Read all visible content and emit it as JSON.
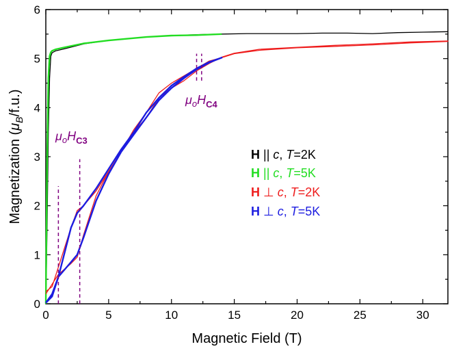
{
  "chart_data": {
    "type": "line",
    "xlabel": "Magnetic Field (T)",
    "ylabel": "Magnetization (μB/f.u.)",
    "ylabel_parts": {
      "pre": "Magnetization (",
      "mu": "μ",
      "sub": "B",
      "post": "/f.u.)"
    },
    "xlim": [
      0,
      32
    ],
    "ylim": [
      0,
      6
    ],
    "xticks": [
      0,
      5,
      10,
      15,
      20,
      25,
      30
    ],
    "yticks": [
      0,
      1,
      2,
      3,
      4,
      5,
      6
    ],
    "grid": false,
    "legend_position": "right-center",
    "series": [
      {
        "legend": {
          "b": "H",
          "sym": "||",
          "c": "c",
          "t": "T",
          "val": "=2K"
        },
        "color": "#000000",
        "loop": false,
        "x": [
          0,
          0.1,
          0.2,
          0.3,
          0.4,
          0.5,
          0.8,
          1.5,
          3,
          5,
          8,
          10,
          12,
          14,
          16,
          18,
          20,
          22,
          24,
          26,
          28,
          30,
          32
        ],
        "values": [
          0,
          1.5,
          3.5,
          4.6,
          5.05,
          5.12,
          5.16,
          5.2,
          5.3,
          5.37,
          5.44,
          5.47,
          5.49,
          5.5,
          5.51,
          5.51,
          5.51,
          5.52,
          5.52,
          5.51,
          5.53,
          5.54,
          5.55
        ]
      },
      {
        "legend": {
          "b": "H",
          "sym": "||",
          "c": "c",
          "t": "T",
          "val": "=5K"
        },
        "color": "#22dd22",
        "loop": false,
        "x": [
          0,
          0.1,
          0.2,
          0.3,
          0.4,
          0.5,
          0.8,
          1.5,
          3,
          5,
          8,
          10,
          12,
          14
        ],
        "values": [
          0,
          2.8,
          4.6,
          5.05,
          5.13,
          5.16,
          5.19,
          5.23,
          5.31,
          5.37,
          5.44,
          5.47,
          5.48,
          5.5
        ]
      },
      {
        "legend": {
          "b": "H",
          "sym": "⊥",
          "c": "c",
          "t": "T",
          "val": "=2K"
        },
        "color": "#ee1c1c",
        "loop": true,
        "x": [
          0,
          1,
          2,
          2.5,
          3,
          4,
          5,
          6,
          7,
          8,
          9,
          10,
          11,
          12,
          13,
          14,
          15,
          17,
          20,
          23,
          26,
          29,
          32
        ],
        "values": [
          0.2,
          0.6,
          0.82,
          0.95,
          1.4,
          2.2,
          2.7,
          3.1,
          3.55,
          3.9,
          4.3,
          4.5,
          4.65,
          4.8,
          4.95,
          5.02,
          5.1,
          5.17,
          5.22,
          5.25,
          5.28,
          5.32,
          5.35
        ],
        "x_return": [
          32,
          29,
          26,
          23,
          20,
          17,
          15,
          14,
          13,
          12,
          11,
          10,
          9,
          8,
          7,
          6,
          5,
          4,
          3,
          2.5,
          2,
          1,
          0.5,
          0
        ],
        "values_return": [
          5.36,
          5.34,
          5.3,
          5.27,
          5.23,
          5.19,
          5.11,
          5.03,
          4.9,
          4.75,
          4.55,
          4.4,
          4.2,
          3.8,
          3.5,
          3.1,
          2.7,
          2.3,
          2.0,
          1.9,
          1.55,
          0.75,
          0.35,
          0.25
        ]
      },
      {
        "legend": {
          "b": "H",
          "sym": "⊥",
          "c": "c",
          "t": "T",
          "val": "=5K"
        },
        "color": "#1c1ce0",
        "loop": true,
        "x": [
          0,
          0.5,
          1,
          2,
          2.5,
          3,
          4,
          5,
          6,
          7,
          8,
          9,
          10,
          11,
          12,
          13,
          14
        ],
        "values": [
          0.02,
          0.2,
          0.55,
          0.85,
          1.0,
          1.35,
          2.1,
          2.65,
          3.1,
          3.45,
          3.8,
          4.15,
          4.4,
          4.6,
          4.78,
          4.92,
          5.02
        ],
        "x_return": [
          14,
          13,
          12,
          11,
          10,
          9,
          8,
          7,
          6,
          5,
          4,
          3,
          2.5,
          2,
          1,
          0.5,
          0
        ],
        "values_return": [
          5.02,
          4.93,
          4.8,
          4.63,
          4.45,
          4.2,
          3.9,
          3.5,
          3.15,
          2.75,
          2.35,
          2.0,
          1.85,
          1.55,
          0.55,
          0.15,
          0.02
        ]
      }
    ],
    "annotations": [
      {
        "id": "hc3",
        "mu": "μ",
        "o": "o",
        "h": "H",
        "sub": "C3",
        "x_label": 0.8,
        "y_label": 3.2,
        "lines_x": [
          1.0,
          2.7
        ],
        "lines_y": [
          [
            0,
            2.4
          ],
          [
            0,
            2.95
          ]
        ]
      },
      {
        "id": "hc4",
        "mu": "μ",
        "o": "o",
        "h": "H",
        "sub": "C4",
        "x_label": 11.3,
        "y_label": 3.9,
        "lines_x": [
          12.0,
          12.4
        ],
        "lines_y": [
          [
            4.55,
            5.1
          ],
          [
            4.55,
            5.1
          ]
        ]
      }
    ],
    "annotation_color": "#800080"
  }
}
